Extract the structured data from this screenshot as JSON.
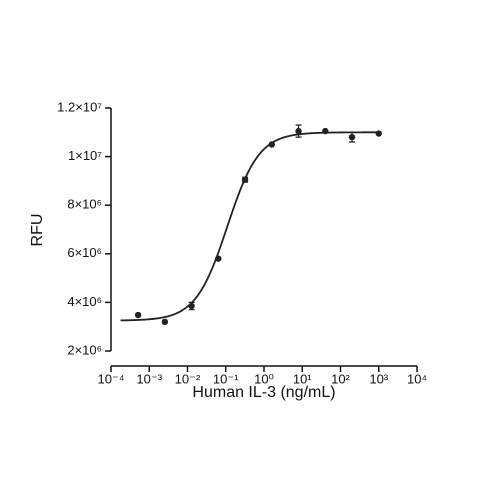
{
  "chart_data": {
    "type": "dose-response",
    "x_label": "Human IL-3 (ng/mL)",
    "y_label": "RFU",
    "x": [
      0.000512,
      0.00256,
      0.0128,
      0.064,
      0.32,
      1.6,
      8,
      40,
      200,
      1000
    ],
    "values": [
      3480000,
      3200000,
      3850000,
      5800000,
      9050000,
      10500000,
      11050000,
      11050000,
      10800000,
      10950000
    ],
    "errors": [
      null,
      null,
      150000,
      null,
      100000,
      null,
      250000,
      null,
      200000,
      null
    ],
    "fit": {
      "bottom": 3250000,
      "top": 11000000,
      "ec50": 0.11,
      "hill": 1.05
    },
    "color": "#222222",
    "x_log": true,
    "xlim": [
      0.0001,
      10000
    ],
    "xticks": [
      {
        "value": 0.0001,
        "label": "10⁻⁴"
      },
      {
        "value": 0.001,
        "label": "10⁻³"
      },
      {
        "value": 0.01,
        "label": "10⁻²"
      },
      {
        "value": 0.1,
        "label": "10⁻¹"
      },
      {
        "value": 1,
        "label": "10⁰"
      },
      {
        "value": 10,
        "label": "10¹"
      },
      {
        "value": 100,
        "label": "10²"
      },
      {
        "value": 1000,
        "label": "10³"
      },
      {
        "value": 10000,
        "label": "10⁴"
      }
    ],
    "ylim": [
      2000000,
      12000000
    ],
    "yticks": [
      {
        "value": 2000000,
        "label": "2×10⁶"
      },
      {
        "value": 4000000,
        "label": "4×10⁶"
      },
      {
        "value": 6000000,
        "label": "6×10⁶"
      },
      {
        "value": 8000000,
        "label": "8×10⁶"
      },
      {
        "value": 10000000,
        "label": "1×10⁷"
      },
      {
        "value": 12000000,
        "label": "1.2×10⁷"
      }
    ]
  }
}
